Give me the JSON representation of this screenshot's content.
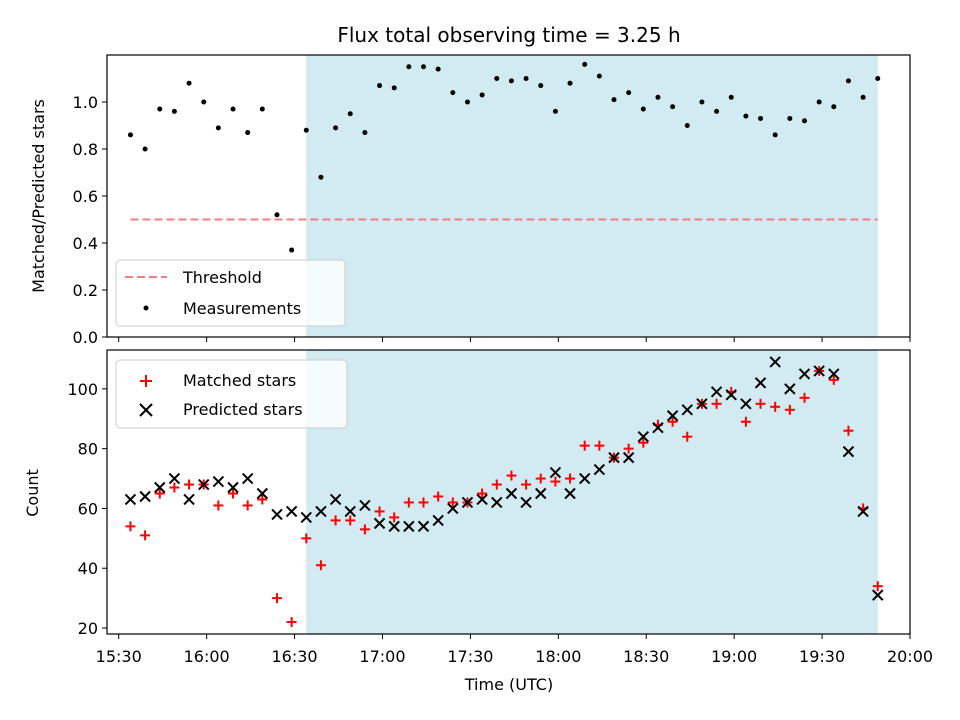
{
  "chart_data": [
    {
      "type": "scatter",
      "title": "Flux total observing time = 3.25 h",
      "ylabel": "Matched/Predicted stars",
      "xlabel": "",
      "ylim": [
        0,
        1.2
      ],
      "yticks": [
        "0.0",
        "0.2",
        "0.4",
        "0.6",
        "0.8",
        "1.0"
      ],
      "shaded_interval": {
        "start": "16:34",
        "end": "19:49",
        "color": "#add8e6"
      },
      "threshold": {
        "name": "Threshold",
        "value": 0.5,
        "start": "15:34",
        "end": "19:49",
        "color": "#f08080"
      },
      "legend": {
        "placement": "lower left",
        "entries": [
          "Threshold",
          "Measurements"
        ]
      },
      "series": [
        {
          "name": "Measurements",
          "marker": "dot",
          "color": "#000000",
          "x": [
            "15:34",
            "15:39",
            "15:44",
            "15:49",
            "15:54",
            "15:59",
            "16:04",
            "16:09",
            "16:14",
            "16:19",
            "16:24",
            "16:29",
            "16:34",
            "16:39",
            "16:44",
            "16:49",
            "16:54",
            "16:59",
            "17:04",
            "17:09",
            "17:14",
            "17:19",
            "17:24",
            "17:29",
            "17:34",
            "17:39",
            "17:44",
            "17:49",
            "17:54",
            "17:59",
            "18:04",
            "18:09",
            "18:14",
            "18:19",
            "18:24",
            "18:29",
            "18:34",
            "18:39",
            "18:44",
            "18:49",
            "18:54",
            "18:59",
            "19:04",
            "19:09",
            "19:14",
            "19:19",
            "19:24",
            "19:29",
            "19:34",
            "19:39",
            "19:44",
            "19:49"
          ],
          "y": [
            0.86,
            0.8,
            0.97,
            0.96,
            1.08,
            1.0,
            0.89,
            0.97,
            0.87,
            0.97,
            0.52,
            0.37,
            0.88,
            0.68,
            0.89,
            0.95,
            0.87,
            1.07,
            1.06,
            1.15,
            1.15,
            1.14,
            1.04,
            1.0,
            1.03,
            1.1,
            1.09,
            1.1,
            1.07,
            0.96,
            1.08,
            1.16,
            1.11,
            1.01,
            1.04,
            0.97,
            1.02,
            0.98,
            0.9,
            1.0,
            0.96,
            1.02,
            0.94,
            0.93,
            0.86,
            0.93,
            0.92,
            1.0,
            0.98,
            1.09,
            1.02,
            1.1
          ]
        }
      ]
    },
    {
      "type": "scatter",
      "title": "",
      "ylabel": "Count",
      "xlabel": "Time (UTC)",
      "ylim": [
        18,
        113
      ],
      "yticks": [
        "20",
        "40",
        "60",
        "80",
        "100"
      ],
      "xticks": [
        "15:30",
        "16:00",
        "16:30",
        "17:00",
        "17:30",
        "18:00",
        "18:30",
        "19:00",
        "19:30",
        "20:00"
      ],
      "xlim": [
        "15:26",
        "20:00"
      ],
      "shaded_interval": {
        "start": "16:34",
        "end": "19:49",
        "color": "#add8e6"
      },
      "legend": {
        "placement": "upper left",
        "entries": [
          "Matched stars",
          "Predicted stars"
        ]
      },
      "series": [
        {
          "name": "Matched stars",
          "marker": "plus",
          "color": "#ff0000",
          "x": [
            "15:34",
            "15:39",
            "15:44",
            "15:49",
            "15:54",
            "15:59",
            "16:04",
            "16:09",
            "16:14",
            "16:19",
            "16:24",
            "16:29",
            "16:34",
            "16:39",
            "16:44",
            "16:49",
            "16:54",
            "16:59",
            "17:04",
            "17:09",
            "17:14",
            "17:19",
            "17:24",
            "17:29",
            "17:34",
            "17:39",
            "17:44",
            "17:49",
            "17:54",
            "17:59",
            "18:04",
            "18:09",
            "18:14",
            "18:19",
            "18:24",
            "18:29",
            "18:34",
            "18:39",
            "18:44",
            "18:49",
            "18:54",
            "18:59",
            "19:04",
            "19:09",
            "19:14",
            "19:19",
            "19:24",
            "19:29",
            "19:34",
            "19:39",
            "19:44",
            "19:49"
          ],
          "y": [
            54,
            51,
            65,
            67,
            68,
            68,
            61,
            65,
            61,
            63,
            30,
            22,
            50,
            41,
            56,
            56,
            53,
            59,
            57,
            62,
            62,
            64,
            62,
            62,
            65,
            68,
            71,
            68,
            70,
            69,
            70,
            81,
            81,
            77,
            80,
            82,
            88,
            89,
            84,
            95,
            95,
            99,
            89,
            95,
            94,
            93,
            97,
            106,
            103,
            86,
            60,
            34
          ]
        },
        {
          "name": "Predicted stars",
          "marker": "x",
          "color": "#000000",
          "x": [
            "15:34",
            "15:39",
            "15:44",
            "15:49",
            "15:54",
            "15:59",
            "16:04",
            "16:09",
            "16:14",
            "16:19",
            "16:24",
            "16:29",
            "16:34",
            "16:39",
            "16:44",
            "16:49",
            "16:54",
            "16:59",
            "17:04",
            "17:09",
            "17:14",
            "17:19",
            "17:24",
            "17:29",
            "17:34",
            "17:39",
            "17:44",
            "17:49",
            "17:54",
            "17:59",
            "18:04",
            "18:09",
            "18:14",
            "18:19",
            "18:24",
            "18:29",
            "18:34",
            "18:39",
            "18:44",
            "18:49",
            "18:54",
            "18:59",
            "19:04",
            "19:09",
            "19:14",
            "19:19",
            "19:24",
            "19:29",
            "19:34",
            "19:39",
            "19:44",
            "19:49"
          ],
          "y": [
            63,
            64,
            67,
            70,
            63,
            68,
            69,
            67,
            70,
            65,
            58,
            59,
            57,
            59,
            63,
            59,
            61,
            55,
            54,
            54,
            54,
            56,
            60,
            62,
            63,
            62,
            65,
            62,
            65,
            72,
            65,
            70,
            73,
            77,
            77,
            84,
            87,
            91,
            93,
            95,
            99,
            98,
            95,
            102,
            109,
            100,
            105,
            106,
            105,
            79,
            59,
            31
          ]
        }
      ]
    }
  ]
}
